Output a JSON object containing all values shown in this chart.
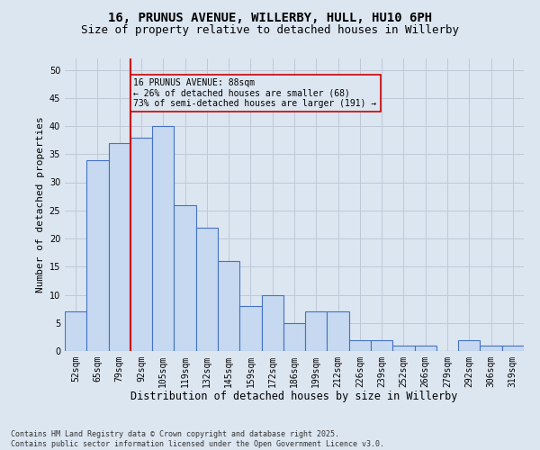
{
  "title_line1": "16, PRUNUS AVENUE, WILLERBY, HULL, HU10 6PH",
  "title_line2": "Size of property relative to detached houses in Willerby",
  "xlabel": "Distribution of detached houses by size in Willerby",
  "ylabel": "Number of detached properties",
  "categories": [
    "52sqm",
    "65sqm",
    "79sqm",
    "92sqm",
    "105sqm",
    "119sqm",
    "132sqm",
    "145sqm",
    "159sqm",
    "172sqm",
    "186sqm",
    "199sqm",
    "212sqm",
    "226sqm",
    "239sqm",
    "252sqm",
    "266sqm",
    "279sqm",
    "292sqm",
    "306sqm",
    "319sqm"
  ],
  "values": [
    7,
    34,
    37,
    38,
    40,
    26,
    22,
    16,
    8,
    10,
    5,
    7,
    7,
    2,
    2,
    1,
    1,
    0,
    2,
    1,
    1
  ],
  "bar_color": "#c6d9f0",
  "bar_edgecolor": "#4472c4",
  "grid_color": "#c0c8d8",
  "background_color": "#dce6f1",
  "vline_x": 2.5,
  "vline_color": "#cc0000",
  "annotation_text": "16 PRUNUS AVENUE: 88sqm\n← 26% of detached houses are smaller (68)\n73% of semi-detached houses are larger (191) →",
  "annotation_box_color": "#cc0000",
  "ylim": [
    0,
    52
  ],
  "yticks": [
    0,
    5,
    10,
    15,
    20,
    25,
    30,
    35,
    40,
    45,
    50
  ],
  "footnote": "Contains HM Land Registry data © Crown copyright and database right 2025.\nContains public sector information licensed under the Open Government Licence v3.0.",
  "title_fontsize": 10,
  "subtitle_fontsize": 9,
  "tick_fontsize": 7,
  "xlabel_fontsize": 8.5,
  "ylabel_fontsize": 8,
  "annotation_fontsize": 7,
  "footnote_fontsize": 6
}
